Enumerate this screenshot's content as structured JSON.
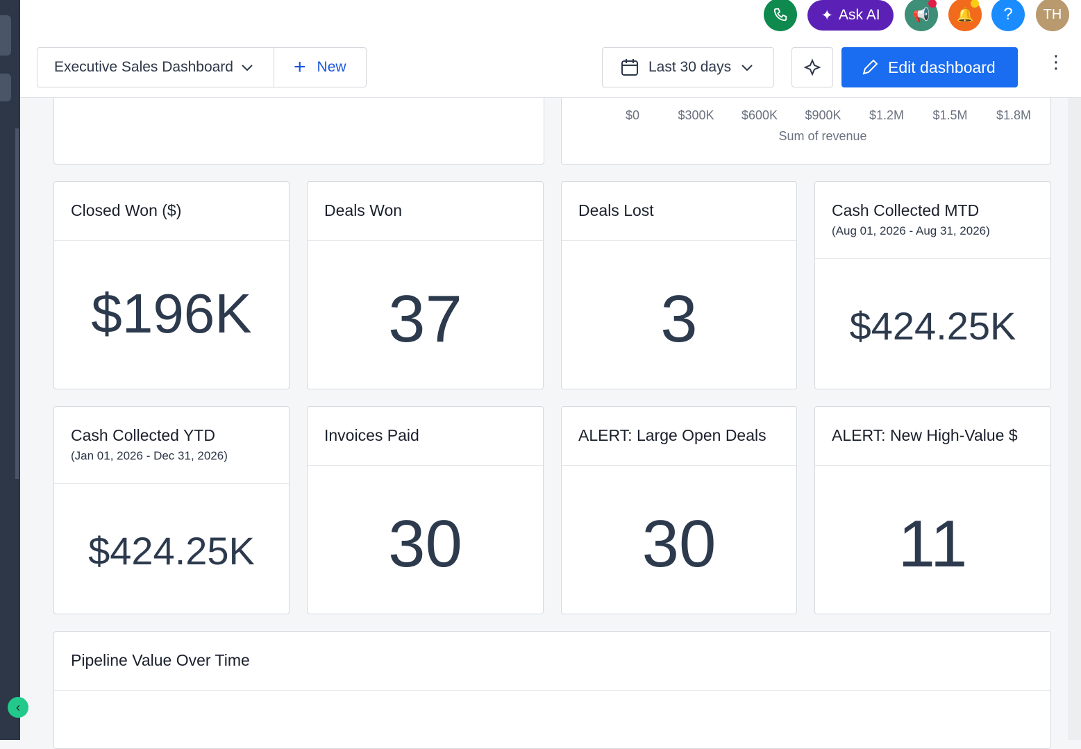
{
  "topbar": {
    "ask_ai": "Ask AI",
    "help": "?",
    "avatar": "TH"
  },
  "toolbar": {
    "dashboard_name": "Executive Sales Dashboard",
    "new_button": "New",
    "date_range": "Last 30 days",
    "edit_button": "Edit dashboard"
  },
  "revenue_chart": {
    "axis_ticks": [
      "$0",
      "$300K",
      "$600K",
      "$900K",
      "$1.2M",
      "$1.5M",
      "$1.8M"
    ],
    "axis_label": "Sum of revenue"
  },
  "cards": [
    {
      "title": "Closed Won ($)",
      "value": "$196K"
    },
    {
      "title": "Deals Won",
      "value": "37"
    },
    {
      "title": "Deals Lost",
      "value": "3"
    },
    {
      "title": "Cash Collected MTD",
      "subtitle": "(Aug 01, 2026 - Aug 31, 2026)",
      "value": "$424.25K"
    },
    {
      "title": "Cash Collected YTD",
      "subtitle": "(Jan 01, 2026 - Dec 31, 2026)",
      "value": "$424.25K"
    },
    {
      "title": "Invoices Paid",
      "value": "30"
    },
    {
      "title": "ALERT: Large Open Deals",
      "value": "30"
    },
    {
      "title": "ALERT: New High-Value $",
      "value": "11"
    }
  ],
  "pipeline": {
    "title": "Pipeline Value Over Time"
  }
}
